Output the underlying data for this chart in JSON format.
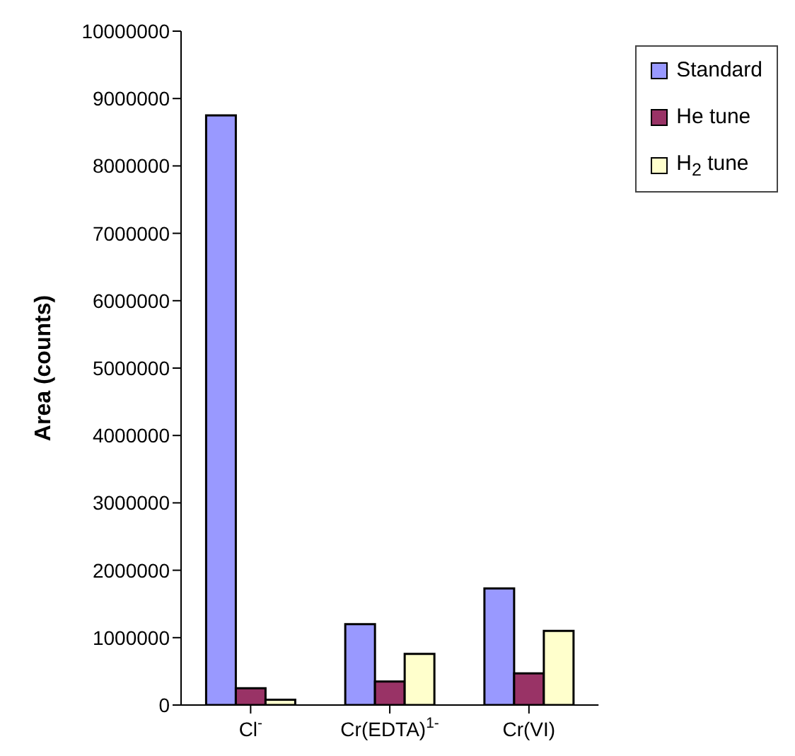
{
  "chart_data": {
    "type": "bar",
    "ylabel": "Area (counts)",
    "categories": [
      "Cl$^{-}$",
      "Cr(EDTA)$^{1-}$",
      "Cr(VI)"
    ],
    "series": [
      {
        "name": "Standard",
        "color": "#9999ff",
        "values": [
          8750000,
          1200000,
          1730000
        ]
      },
      {
        "name": "He tune",
        "color": "#993366",
        "values": [
          250000,
          350000,
          470000
        ]
      },
      {
        "name": "H$_{2}$ tune",
        "color": "#ffffcc",
        "values": [
          80000,
          760000,
          1100000
        ]
      }
    ],
    "ylim": [
      0,
      10000000
    ],
    "yticks": [
      0,
      1000000,
      2000000,
      3000000,
      4000000,
      5000000,
      6000000,
      7000000,
      8000000,
      9000000,
      10000000
    ],
    "grid": false,
    "legend": "top right"
  }
}
